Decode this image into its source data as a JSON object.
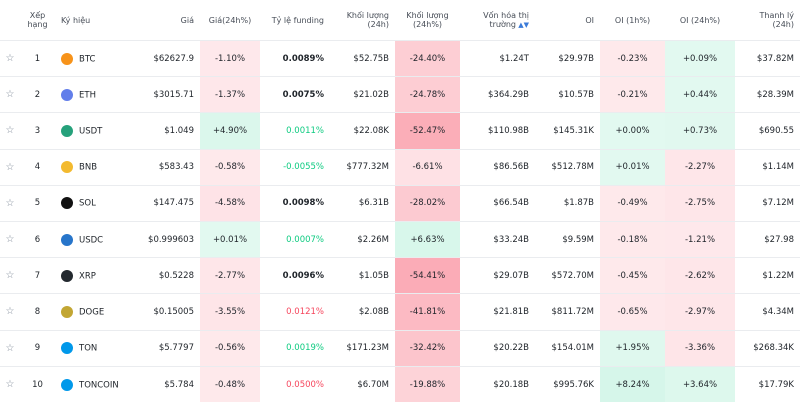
{
  "table": {
    "header": [
      "Xếp hạng",
      "Ký hiệu",
      "Giá",
      "Giá(24h%)",
      "Tỷ lệ funding",
      "Khối lượng (24h)",
      "Khối lượng (24h%)",
      "Vốn hóa thị trường",
      "OI",
      "OI (1h%)",
      "OI (24h%)",
      "Thanh lý (24h)"
    ],
    "rows": [
      [
        1,
        "BTC",
        "$62627.9",
        "-1.10%",
        "0.0089%",
        "$52.75B",
        "-24.40%",
        "$1.24T",
        "$29.97B",
        "-0.23%",
        "+0.09%",
        "$37.82M"
      ],
      [
        2,
        "ETH",
        "$3015.71",
        "-1.37%",
        "0.0075%",
        "$21.02B",
        "-24.78%",
        "$364.29B",
        "$10.57B",
        "-0.21%",
        "+0.44%",
        "$28.39M"
      ],
      [
        3,
        "USDT",
        "$1.049",
        "+4.90%",
        "0.0011%",
        "$22.08K",
        "-52.47%",
        "$110.98B",
        "$145.31K",
        "+0.00%",
        "+0.73%",
        "$690.55"
      ],
      [
        4,
        "BNB",
        "$583.43",
        "-0.58%",
        "-0.0055%",
        "$777.32M",
        "-6.61%",
        "$86.56B",
        "$512.78M",
        "+0.01%",
        "-2.27%",
        "$1.14M"
      ],
      [
        5,
        "SOL",
        "$147.475",
        "-4.58%",
        "0.0098%",
        "$6.31B",
        "-28.02%",
        "$66.54B",
        "$1.87B",
        "-0.49%",
        "-2.75%",
        "$7.12M"
      ],
      [
        6,
        "USDC",
        "$0.999603",
        "+0.01%",
        "0.0007%",
        "$2.26M",
        "+6.63%",
        "$33.24B",
        "$9.59M",
        "-0.18%",
        "-1.21%",
        "$27.98"
      ],
      [
        7,
        "XRP",
        "$0.5228",
        "-2.77%",
        "0.0096%",
        "$1.05B",
        "-54.41%",
        "$29.07B",
        "$572.70M",
        "-0.45%",
        "-2.62%",
        "$1.22M"
      ],
      [
        8,
        "DOGE",
        "$0.15005",
        "-3.55%",
        "0.0121%",
        "$2.08B",
        "-41.81%",
        "$21.81B",
        "$811.72M",
        "-0.65%",
        "-2.97%",
        "$4.34M"
      ],
      [
        9,
        "TON",
        "$5.7797",
        "-0.56%",
        "0.0019%",
        "$171.23M",
        "-32.42%",
        "$20.22B",
        "$154.01M",
        "+1.95%",
        "-3.36%",
        "$268.34K"
      ],
      [
        10,
        "TONCOIN",
        "$5.784",
        "-0.48%",
        "0.0500%",
        "$6.70M",
        "-19.88%",
        "$20.18B",
        "$995.76K",
        "+8.24%",
        "+3.64%",
        "$17.79K"
      ]
    ],
    "funding_colors": [
      "#1e2329",
      "#1e2329",
      "#0ecb81",
      "#0ecb81",
      "#1e2329",
      "#0ecb81",
      "#1e2329",
      "#f6465d",
      "#0ecb81",
      "#f6465d"
    ]
  }
}
